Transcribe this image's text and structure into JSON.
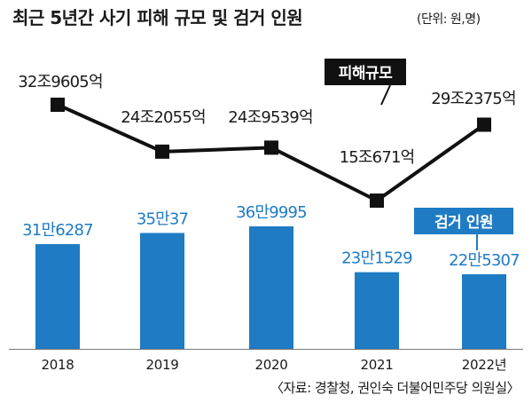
{
  "header": {
    "title": "최근 5년간 사기 피해 규모 및 검거 인원",
    "unit": "(단위: 원,명)"
  },
  "source": "〈자료: 경찰청, 권인숙 더불어민주당 의원실〉",
  "chart_data": {
    "type": "bar+line",
    "categories": [
      "2018",
      "2019",
      "2020",
      "2021",
      "2022년"
    ],
    "series": [
      {
        "name": "검거 인원",
        "kind": "bar",
        "color": "#1e7bc4",
        "values": [
          316287,
          350037,
          369995,
          231529,
          225307
        ],
        "labels": [
          "31만6287",
          "35만37",
          "36만9995",
          "23만1529",
          "22만5307"
        ]
      },
      {
        "name": "피해규모",
        "kind": "line",
        "color": "#111111",
        "values": [
          329605,
          242055,
          249539,
          150671,
          292375
        ],
        "value_unit": "억",
        "labels": [
          "32조9605억",
          "24조2055억",
          "24조9539억",
          "15조671억",
          "29조2375억"
        ]
      }
    ],
    "legend": [
      {
        "label": "피해규모",
        "style": "black-box"
      },
      {
        "label": "검거 인원",
        "style": "blue-box"
      }
    ]
  }
}
